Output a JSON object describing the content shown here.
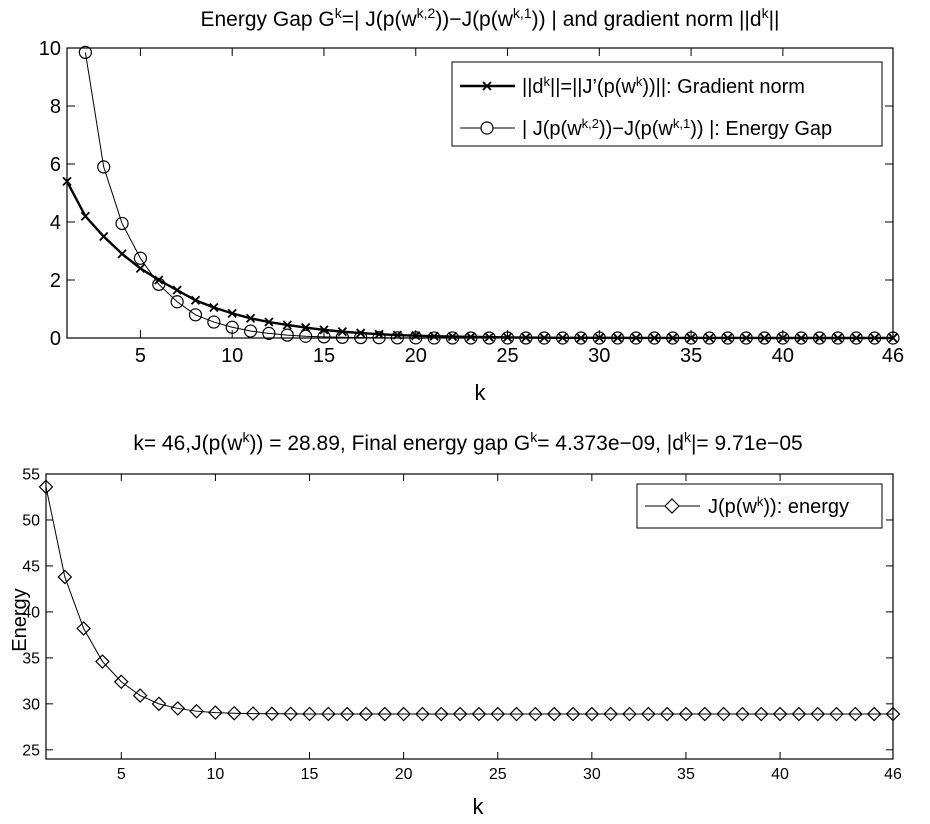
{
  "chart_data": [
    {
      "type": "line",
      "title": {
        "base": "Energy Gap G",
        "sup1": "k",
        "mid1": "=| J(p(w",
        "sup2": "k,2",
        "mid2": "))−J(p(w",
        "sup3": "k,1",
        "mid3": ")) | and gradient norm ||d",
        "sup4": "k",
        "end": "||"
      },
      "xlabel": "k",
      "ylabel": "",
      "xlim": [
        1,
        46
      ],
      "ylim": [
        0,
        10
      ],
      "xticks": [
        5,
        10,
        15,
        20,
        25,
        30,
        35,
        40,
        46
      ],
      "yticks": [
        0,
        2,
        4,
        6,
        8,
        10
      ],
      "grid": false,
      "legend_position": "top-right",
      "x": [
        1,
        2,
        3,
        4,
        5,
        6,
        7,
        8,
        9,
        10,
        11,
        12,
        13,
        14,
        15,
        16,
        17,
        18,
        19,
        20,
        21,
        22,
        23,
        24,
        25,
        26,
        27,
        28,
        29,
        30,
        31,
        32,
        33,
        34,
        35,
        36,
        37,
        38,
        39,
        40,
        41,
        42,
        43,
        44,
        45,
        46
      ],
      "series": [
        {
          "legend": {
            "p1": "||d",
            "s1": "k",
            "p2": "||=||J’(p(w",
            "s2": "k",
            "p3": "))||: Gradient norm"
          },
          "marker": "x",
          "line_width": "thick",
          "x": [
            1,
            2,
            3,
            4,
            5,
            6,
            7,
            8,
            9,
            10,
            11,
            12,
            13,
            14,
            15,
            16,
            17,
            18,
            19,
            20,
            21,
            22,
            23,
            24,
            25,
            26,
            27,
            28,
            29,
            30,
            31,
            32,
            33,
            34,
            35,
            36,
            37,
            38,
            39,
            40,
            41,
            42,
            43,
            44,
            45,
            46
          ],
          "values": [
            5.4,
            4.2,
            3.5,
            2.9,
            2.4,
            2.0,
            1.65,
            1.3,
            1.05,
            0.85,
            0.68,
            0.55,
            0.45,
            0.36,
            0.28,
            0.22,
            0.17,
            0.13,
            0.1,
            0.08,
            0.06,
            0.05,
            0.04,
            0.03,
            0.02,
            0.015,
            0.01,
            0.008,
            0.006,
            0.005,
            0.004,
            0.003,
            0.002,
            0.002,
            0.001,
            0.001,
            0.001,
            0.001,
            0.0005,
            0.0005,
            0.0005,
            0.0003,
            0.0003,
            0.0002,
            0.0001,
            0.0001
          ]
        },
        {
          "legend": {
            "p1": "| J(p(w",
            "s1": "k,2",
            "p2": "))−J(p(w",
            "s2": "k,1",
            "p3": ")) |: Energy Gap"
          },
          "marker": "circle",
          "line_width": "thin",
          "x": [
            2,
            3,
            4,
            5,
            6,
            7,
            8,
            9,
            10,
            11,
            12,
            13,
            14,
            15,
            16,
            17,
            18,
            19,
            20,
            21,
            22,
            23,
            24,
            25,
            26,
            27,
            28,
            29,
            30,
            31,
            32,
            33,
            34,
            35,
            36,
            37,
            38,
            39,
            40,
            41,
            42,
            43,
            44,
            45,
            46
          ],
          "values": [
            9.85,
            5.9,
            3.95,
            2.75,
            1.85,
            1.25,
            0.8,
            0.55,
            0.37,
            0.24,
            0.16,
            0.1,
            0.06,
            0.04,
            0.025,
            0.015,
            0.01,
            0.006,
            0.004,
            0.003,
            0.002,
            0.001,
            0.001,
            0.0005,
            0.0003,
            0.0002,
            0.0001,
            0.0001,
            5e-05,
            3e-05,
            2e-05,
            1e-05,
            1e-05,
            0,
            0,
            0,
            0,
            0,
            0,
            0,
            0,
            0,
            0,
            0,
            0
          ]
        }
      ]
    },
    {
      "type": "line",
      "title": {
        "p1": "k= 46,J(p(w",
        "s1": "k",
        "p2": ")) = 28.89, Final energy gap G",
        "s2": "k",
        "p3": "= 4.373e−09, |d",
        "s3": "k",
        "p4": "|= 9.71e−05"
      },
      "xlabel": "k",
      "ylabel": "Energy",
      "xlim": [
        1,
        46
      ],
      "ylim": [
        24,
        55
      ],
      "xticks": [
        5,
        10,
        15,
        20,
        25,
        30,
        35,
        40,
        46
      ],
      "yticks": [
        25,
        30,
        35,
        40,
        45,
        50,
        55
      ],
      "grid": false,
      "legend_position": "top-right",
      "series": [
        {
          "legend": {
            "p1": "J(p(w",
            "s1": "k",
            "p2": ")): energy"
          },
          "marker": "diamond",
          "line_width": "thin",
          "x": [
            1,
            2,
            3,
            4,
            5,
            6,
            7,
            8,
            9,
            10,
            11,
            12,
            13,
            14,
            15,
            16,
            17,
            18,
            19,
            20,
            21,
            22,
            23,
            24,
            25,
            26,
            27,
            28,
            29,
            30,
            31,
            32,
            33,
            34,
            35,
            36,
            37,
            38,
            39,
            40,
            41,
            42,
            43,
            44,
            45,
            46
          ],
          "values": [
            53.6,
            43.8,
            38.2,
            34.6,
            32.4,
            30.9,
            30.0,
            29.5,
            29.2,
            29.05,
            28.98,
            28.94,
            28.92,
            28.91,
            28.9,
            28.9,
            28.89,
            28.89,
            28.89,
            28.89,
            28.89,
            28.89,
            28.89,
            28.89,
            28.89,
            28.89,
            28.89,
            28.89,
            28.89,
            28.89,
            28.89,
            28.89,
            28.89,
            28.89,
            28.89,
            28.89,
            28.89,
            28.89,
            28.89,
            28.89,
            28.89,
            28.89,
            28.89,
            28.89,
            28.89,
            28.89
          ]
        }
      ]
    }
  ]
}
